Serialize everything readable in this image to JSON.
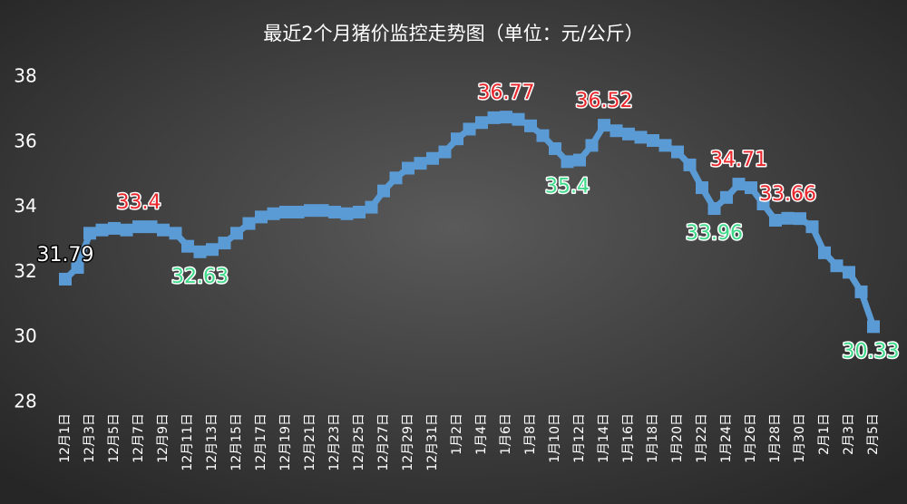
{
  "chart_data": {
    "type": "line",
    "title": "最近2个月猪价监控走势图（单位：元/公斤）",
    "categories": [
      "12月1日",
      null,
      "12月3日",
      null,
      "12月5日",
      null,
      "12月7日",
      null,
      "12月9日",
      null,
      "12月11日",
      null,
      "12月13日",
      null,
      "12月15日",
      null,
      "12月17日",
      null,
      "12月19日",
      null,
      "12月21日",
      null,
      "12月23日",
      null,
      "12月25日",
      null,
      "12月27日",
      null,
      "12月29日",
      null,
      "12月31日",
      null,
      "1月2日",
      null,
      "1月4日",
      null,
      "1月6日",
      null,
      "1月8日",
      null,
      "1月10日",
      null,
      "1月12日",
      null,
      "1月14日",
      null,
      "1月16日",
      null,
      "1月18日",
      null,
      "1月20日",
      null,
      "1月22日",
      null,
      "1月24日",
      null,
      "1月26日",
      null,
      "1月28日",
      null,
      "1月30日",
      null,
      "2月1日",
      null,
      "2月3日",
      null,
      "2月5日"
    ],
    "values": [
      31.79,
      32.15,
      33.2,
      33.3,
      33.35,
      33.3,
      33.4,
      33.4,
      33.3,
      33.2,
      32.8,
      32.63,
      32.7,
      32.9,
      33.2,
      33.5,
      33.7,
      33.8,
      33.85,
      33.85,
      33.9,
      33.9,
      33.85,
      33.8,
      33.85,
      34.0,
      34.5,
      34.9,
      35.2,
      35.35,
      35.5,
      35.7,
      36.1,
      36.4,
      36.6,
      36.75,
      36.77,
      36.7,
      36.5,
      36.2,
      35.8,
      35.4,
      35.45,
      35.9,
      36.52,
      36.35,
      36.25,
      36.15,
      36.05,
      35.9,
      35.7,
      35.3,
      34.6,
      33.96,
      34.3,
      34.71,
      34.6,
      34.1,
      33.6,
      33.66,
      33.65,
      33.4,
      32.6,
      32.2,
      32.0,
      31.4,
      30.33
    ],
    "value_labels": [
      "31.79",
      null,
      null,
      null,
      null,
      null,
      "33.4",
      null,
      null,
      null,
      null,
      "32.63",
      null,
      null,
      null,
      null,
      null,
      null,
      null,
      null,
      null,
      null,
      null,
      null,
      null,
      null,
      null,
      null,
      null,
      null,
      null,
      null,
      null,
      null,
      null,
      null,
      "36.77",
      null,
      null,
      null,
      null,
      "35.4",
      null,
      null,
      "36.52",
      null,
      null,
      null,
      null,
      null,
      null,
      null,
      null,
      "33.96",
      null,
      "34.71",
      null,
      null,
      null,
      "33.66",
      null,
      null,
      null,
      null,
      null,
      null,
      "30.33"
    ],
    "label_colors": {
      "first": "#ffffff",
      "peak": "#e8262b",
      "trough": "#3fd98a"
    },
    "color": "#5b9bd5",
    "ylim": [
      28,
      38
    ],
    "yticks": [
      28,
      30,
      32,
      34,
      36,
      38
    ],
    "grid": false
  }
}
